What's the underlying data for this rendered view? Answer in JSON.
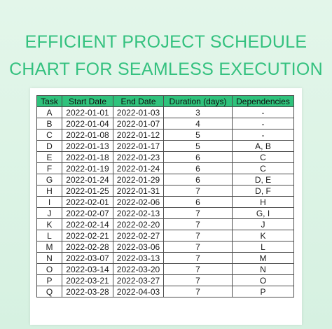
{
  "title": {
    "line1": "EFFICIENT PROJECT SCHEDULE",
    "line2": "CHART FOR SEAMLESS EXECUTION"
  },
  "colors": {
    "title": "#34c17f",
    "header_fill": "#2fc27c",
    "background": "#dcf3e5"
  },
  "table": {
    "headers": [
      "Task",
      "Start Date",
      "End Date",
      "Duration (days)",
      "Dependencies"
    ],
    "rows": [
      [
        "A",
        "2022-01-01",
        "2022-01-03",
        "3",
        "-"
      ],
      [
        "B",
        "2022-01-04",
        "2022-01-07",
        "4",
        "-"
      ],
      [
        "C",
        "2022-01-08",
        "2022-01-12",
        "5",
        "-"
      ],
      [
        "D",
        "2022-01-13",
        "2022-01-17",
        "5",
        "A, B"
      ],
      [
        "E",
        "2022-01-18",
        "2022-01-23",
        "6",
        "C"
      ],
      [
        "F",
        "2022-01-19",
        "2022-01-24",
        "6",
        "C"
      ],
      [
        "G",
        "2022-01-24",
        "2022-01-29",
        "6",
        "D, E"
      ],
      [
        "H",
        "2022-01-25",
        "2022-01-31",
        "7",
        "D, F"
      ],
      [
        "I",
        "2022-02-01",
        "2022-02-06",
        "6",
        "H"
      ],
      [
        "J",
        "2022-02-07",
        "2022-02-13",
        "7",
        "G, I"
      ],
      [
        "K",
        "2022-02-14",
        "2022-02-20",
        "7",
        "J"
      ],
      [
        "L",
        "2022-02-21",
        "2022-02-27",
        "7",
        "K"
      ],
      [
        "M",
        "2022-02-28",
        "2022-03-06",
        "7",
        "L"
      ],
      [
        "N",
        "2022-03-07",
        "2022-03-13",
        "7",
        "M"
      ],
      [
        "O",
        "2022-03-14",
        "2022-03-20",
        "7",
        "N"
      ],
      [
        "P",
        "2022-03-21",
        "2022-03-27",
        "7",
        "O"
      ],
      [
        "Q",
        "2022-03-28",
        "2022-04-03",
        "7",
        "P"
      ]
    ]
  }
}
